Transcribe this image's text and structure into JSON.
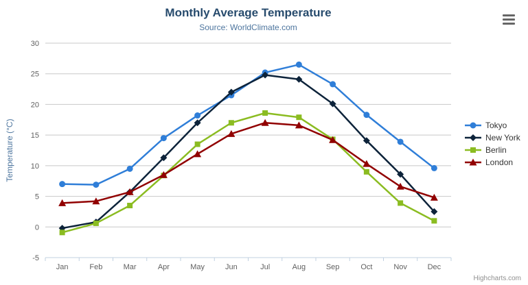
{
  "colors": {
    "title": "#274b6d",
    "subtitle": "#4d759e",
    "axis_title": "#4d759e",
    "axis_label": "#606060",
    "grid": "#c8c8c8",
    "axis_line": "#c0d0e0",
    "legend_text": "#333333",
    "credits_text": "#909090",
    "menu_icon": "#666666"
  },
  "export_menu": {
    "tooltip": "Chart context menu"
  },
  "credits": {
    "label": "Highcharts.com"
  },
  "chart_data": {
    "type": "line",
    "title": "Monthly Average Temperature",
    "subtitle": "Source: WorldClimate.com",
    "xlabel": "",
    "ylabel": "Temperature (°C)",
    "ylim": [
      -5,
      30
    ],
    "y_ticks": [
      -5,
      0,
      5,
      10,
      15,
      20,
      25,
      30
    ],
    "grid": "horizontal",
    "legend_position": "right",
    "categories": [
      "Jan",
      "Feb",
      "Mar",
      "Apr",
      "May",
      "Jun",
      "Jul",
      "Aug",
      "Sep",
      "Oct",
      "Nov",
      "Dec"
    ],
    "series": [
      {
        "name": "Tokyo",
        "color": "#2f7ed8",
        "marker": "circle",
        "values": [
          7.0,
          6.9,
          9.5,
          14.5,
          18.2,
          21.5,
          25.2,
          26.5,
          23.3,
          18.3,
          13.9,
          9.6
        ]
      },
      {
        "name": "New York",
        "color": "#0d233a",
        "marker": "diamond",
        "values": [
          -0.2,
          0.8,
          5.7,
          11.3,
          17.0,
          22.0,
          24.8,
          24.1,
          20.1,
          14.1,
          8.6,
          2.5
        ]
      },
      {
        "name": "Berlin",
        "color": "#8bbc21",
        "marker": "square",
        "values": [
          -0.9,
          0.6,
          3.5,
          8.4,
          13.5,
          17.0,
          18.6,
          17.9,
          14.3,
          9.0,
          3.9,
          1.0
        ]
      },
      {
        "name": "London",
        "color": "#910000",
        "marker": "triangle",
        "values": [
          3.9,
          4.2,
          5.7,
          8.5,
          11.9,
          15.2,
          17.0,
          16.6,
          14.2,
          10.3,
          6.6,
          4.8
        ]
      }
    ]
  }
}
